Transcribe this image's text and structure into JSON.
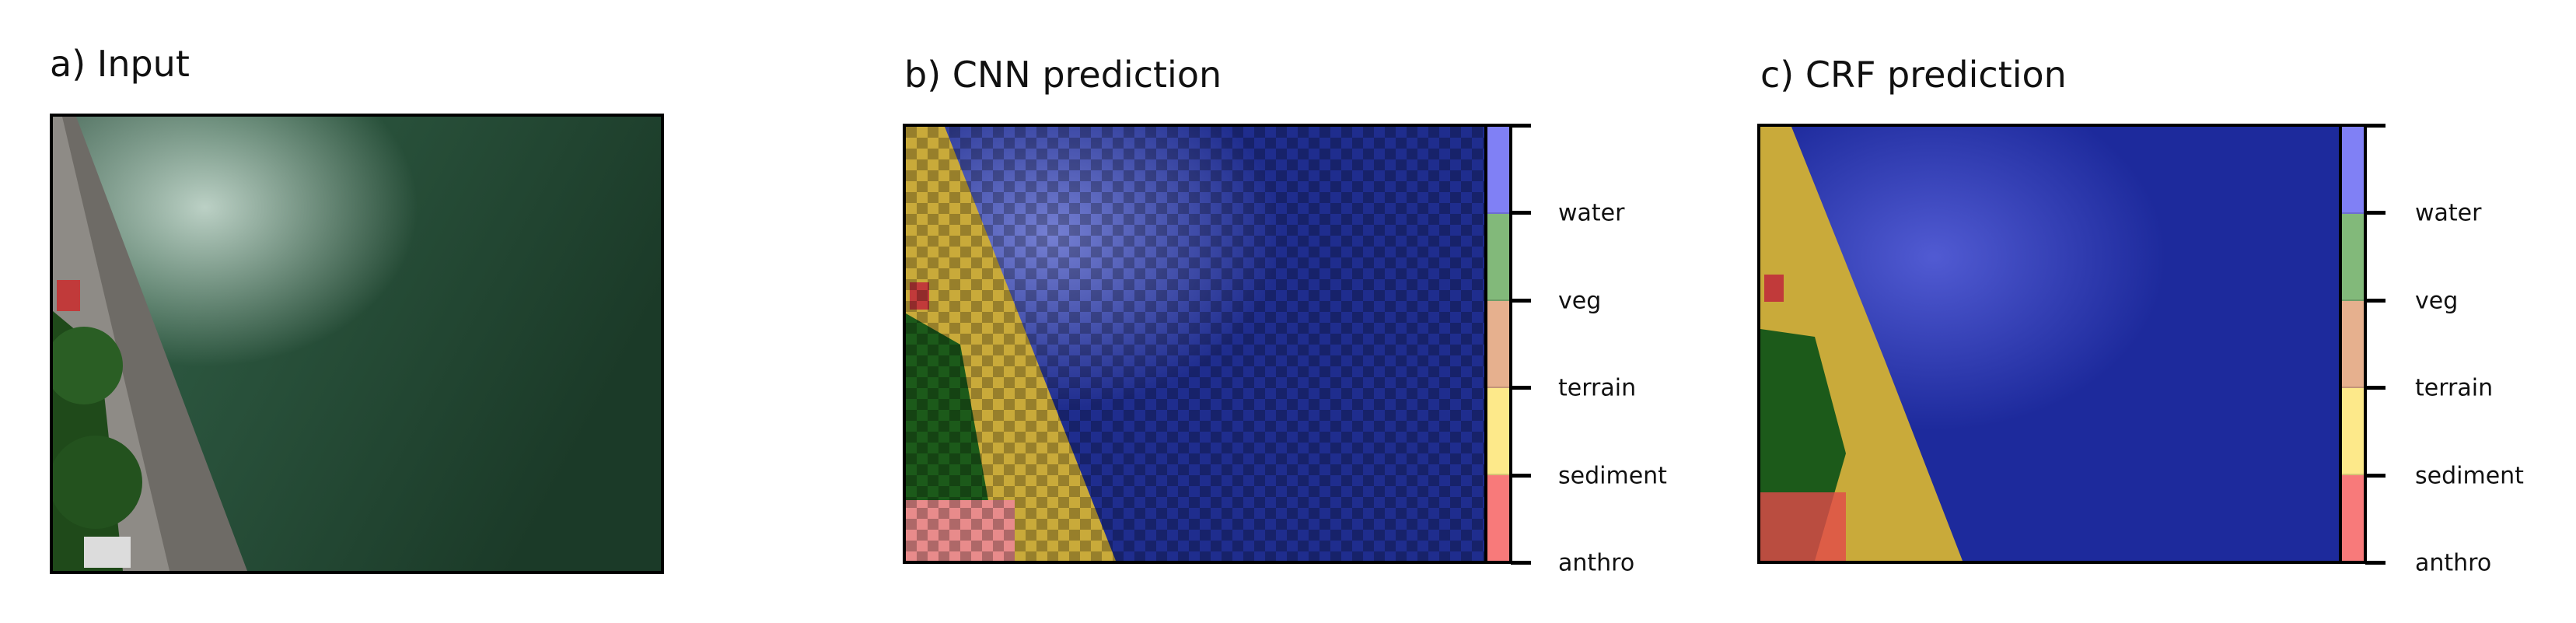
{
  "panels": [
    {
      "title": "a) Input"
    },
    {
      "title": "b) CNN prediction"
    },
    {
      "title": "c) CRF prediction"
    }
  ],
  "legend": {
    "classes_top_to_bottom": [
      "water",
      "veg",
      "terrain",
      "sediment",
      "anthro"
    ],
    "colors_top_to_bottom": [
      "#8080f5",
      "#82b97a",
      "#e6b08e",
      "#fde98a",
      "#f87a7a"
    ]
  },
  "colors": {
    "water_overlay": "#1d2a9c",
    "sediment_overlay": "#c9aa3a",
    "vegetation": "#1c5a1a",
    "sea": "#234a35",
    "road": "#8a8780",
    "anthro_overlay": "#e24a4a"
  }
}
